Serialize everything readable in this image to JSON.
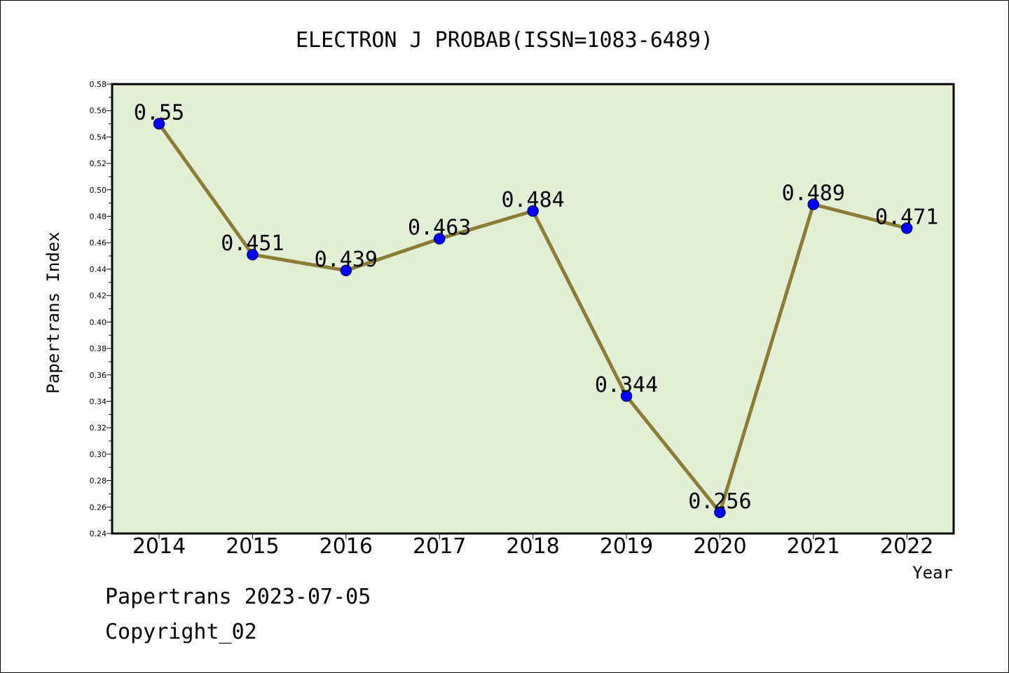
{
  "chart_data": {
    "type": "line",
    "title": "ELECTRON J PROBAB(ISSN=1083-6489)",
    "xlabel": "Year",
    "ylabel": "Papertrans Index",
    "categories": [
      "2014",
      "2015",
      "2016",
      "2017",
      "2018",
      "2019",
      "2020",
      "2021",
      "2022"
    ],
    "values": [
      0.55,
      0.451,
      0.439,
      0.463,
      0.484,
      0.344,
      0.256,
      0.489,
      0.471
    ],
    "data_labels": [
      "0.55",
      "0.451",
      "0.439",
      "0.463",
      "0.484",
      "0.344",
      "0.256",
      "0.489",
      "0.471"
    ],
    "ylim": [
      0.24,
      0.58
    ],
    "yticks": [
      "0.24",
      "0.26",
      "0.28",
      "0.30",
      "0.32",
      "0.34",
      "0.36",
      "0.38",
      "0.40",
      "0.42",
      "0.44",
      "0.46",
      "0.48",
      "0.50",
      "0.52",
      "0.54",
      "0.56",
      "0.58"
    ],
    "grid": false,
    "colors": {
      "plot_background": "#e2efd4",
      "line": "#8b7d36",
      "marker": "#0000ff",
      "marker_edge": "#00007a",
      "frame": "#000000"
    }
  },
  "footer": {
    "line1": "Papertrans 2023-07-05",
    "line2": "Copyright_02"
  }
}
